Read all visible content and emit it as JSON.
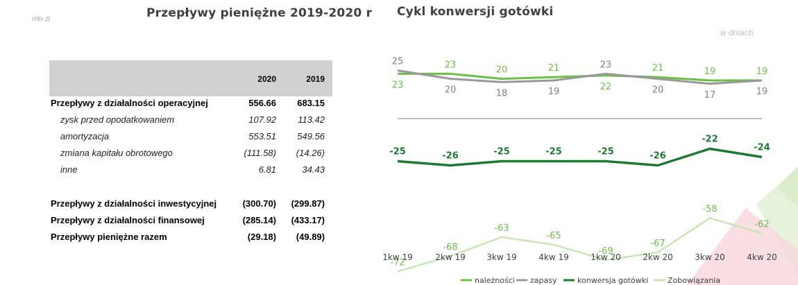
{
  "left_panel": {
    "unit": "mln zł",
    "title": "Przepływy pieniężne 2019-2020 r",
    "table": {
      "columns": [
        "2020",
        "2019"
      ],
      "rows": [
        {
          "label": "Przepływy z działalności operacyjnej",
          "v2020": "556.66",
          "v2019": "683.15",
          "style": "bold"
        },
        {
          "label": "zysk przed opodatkowaniem",
          "v2020": "107.92",
          "v2019": "113.42",
          "style": "sub"
        },
        {
          "label": "amortyzacja",
          "v2020": "553.51",
          "v2019": "549.56",
          "style": "sub"
        },
        {
          "label": "zmiana kapitału obrotowego",
          "v2020": "(111.58)",
          "v2019": "(14.26)",
          "style": "sub"
        },
        {
          "label": "inne",
          "v2020": "6.81",
          "v2019": "34.43",
          "style": "sub"
        },
        {
          "label": "Przepływy z działalności inwestycyjnej",
          "v2020": "(300.70)",
          "v2019": "(299.87)",
          "style": "bold"
        },
        {
          "label": "Przepływy z działalności finansowej",
          "v2020": "(285.14)",
          "v2019": "(433.17)",
          "style": "bold"
        },
        {
          "label": "Przepływy pieniężne razem",
          "v2020": "(29.18)",
          "v2019": "(49.89)",
          "style": "bold"
        }
      ]
    }
  },
  "right_panel": {
    "title": "Cykl konwersji gotówki",
    "unit": "w dniach"
  },
  "chart_data": {
    "type": "line",
    "title": "Cykl konwersji gotówki",
    "subtitle": "w dniach",
    "categories": [
      "1kw 19",
      "2kw 19",
      "3kw 19",
      "4kw 19",
      "1kw 20",
      "2kw 20",
      "3kw 20",
      "4kw 20"
    ],
    "series": [
      {
        "name": "należności",
        "values": [
          23,
          23,
          20,
          21,
          22,
          21,
          19,
          19
        ],
        "color": "#6abf45"
      },
      {
        "name": "zapasy",
        "values": [
          25,
          20,
          18,
          19,
          23,
          20,
          17,
          19
        ],
        "color": "#999999"
      },
      {
        "name": "konwersja gotówki",
        "values": [
          -25,
          -26,
          -25,
          -25,
          -25,
          -26,
          -22,
          -24
        ],
        "color": "#1e7a33"
      },
      {
        "name": "Zobowiązania",
        "values": [
          -72,
          -68,
          -63,
          -65,
          -69,
          -67,
          -58,
          -62
        ],
        "color": "#c8e6b4"
      }
    ],
    "legend": "bottom",
    "grid": false
  }
}
